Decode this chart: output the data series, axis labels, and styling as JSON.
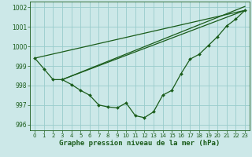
{
  "background_color": "#cce8e8",
  "grid_color": "#99cccc",
  "line_color": "#1a5c1a",
  "title": "Graphe pression niveau de la mer (hPa)",
  "xlim": [
    -0.5,
    23.5
  ],
  "ylim": [
    995.7,
    1002.3
  ],
  "yticks": [
    996,
    997,
    998,
    999,
    1000,
    1001,
    1002
  ],
  "xticks": [
    0,
    1,
    2,
    3,
    4,
    5,
    6,
    7,
    8,
    9,
    10,
    11,
    12,
    13,
    14,
    15,
    16,
    17,
    18,
    19,
    20,
    21,
    22,
    23
  ],
  "main_x": [
    0,
    1,
    2,
    3,
    4,
    5,
    6,
    7,
    8,
    9,
    10,
    11,
    12,
    13,
    14,
    15,
    16,
    17,
    18,
    19,
    20,
    21,
    22,
    23
  ],
  "main_y": [
    999.4,
    998.85,
    998.3,
    998.3,
    998.05,
    997.75,
    997.5,
    997.0,
    996.9,
    996.85,
    997.1,
    996.45,
    996.35,
    996.65,
    997.5,
    997.75,
    998.6,
    999.35,
    999.6,
    1000.05,
    1000.5,
    1001.05,
    1001.4,
    1001.85
  ],
  "line2_x": [
    3,
    23
  ],
  "line2_y": [
    998.3,
    1001.85
  ],
  "line3_x": [
    3,
    23
  ],
  "line3_y": [
    998.3,
    1002.05
  ],
  "line4_x": [
    0,
    23
  ],
  "line4_y": [
    999.4,
    1001.85
  ]
}
